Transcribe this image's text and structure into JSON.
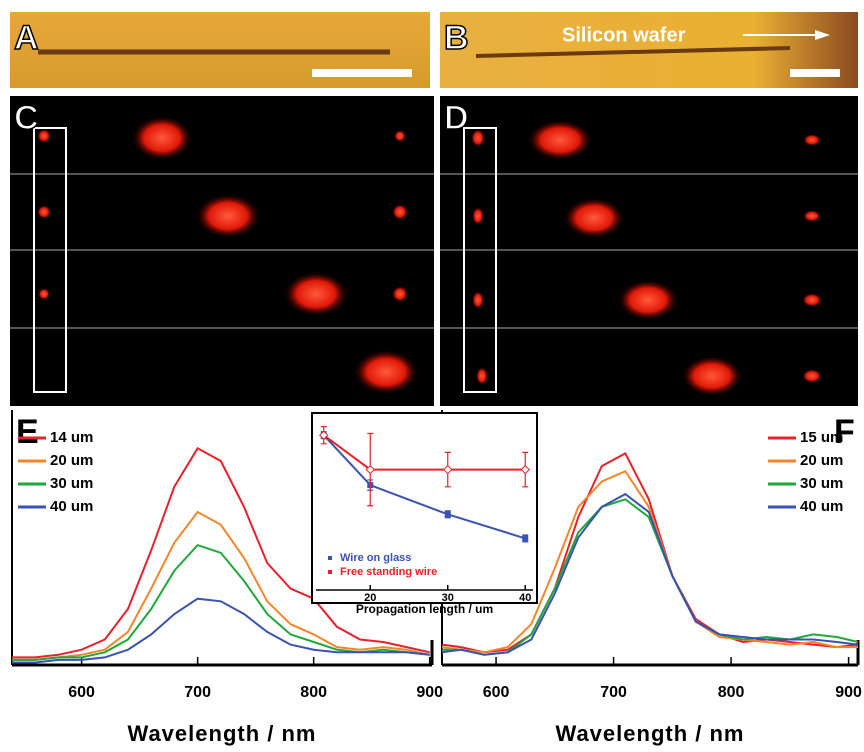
{
  "panels": {
    "labels": [
      "A",
      "B",
      "C",
      "D"
    ],
    "annotation": "Silicon wafer"
  },
  "chart_data": [
    {
      "type": "line",
      "panel": "E",
      "xlabel": "Wavelength / nm",
      "x": [
        540,
        560,
        580,
        600,
        620,
        640,
        660,
        680,
        700,
        720,
        740,
        760,
        780,
        800,
        820,
        840,
        860,
        880,
        900
      ],
      "series": [
        {
          "name": "14 um",
          "color": "#e8202a",
          "values": [
            3,
            3,
            4,
            6,
            10,
            22,
            45,
            70,
            85,
            80,
            62,
            40,
            30,
            26,
            15,
            10,
            9,
            7,
            5
          ]
        },
        {
          "name": "20 um",
          "color": "#f5852a",
          "values": [
            2,
            2,
            3,
            4,
            6,
            13,
            30,
            48,
            60,
            55,
            42,
            25,
            16,
            12,
            7,
            6,
            7,
            6,
            4
          ]
        },
        {
          "name": "30 um",
          "color": "#1fa83a",
          "values": [
            2,
            2,
            3,
            3,
            5,
            10,
            22,
            37,
            47,
            44,
            33,
            20,
            12,
            9,
            6,
            5,
            6,
            5,
            4
          ]
        },
        {
          "name": "40 um",
          "color": "#3a52b0",
          "values": [
            1,
            1,
            2,
            2,
            3,
            6,
            12,
            20,
            26,
            25,
            20,
            13,
            8,
            6,
            5,
            5,
            5,
            5,
            4
          ]
        }
      ],
      "xlim": [
        540,
        902
      ],
      "xticks": [
        600,
        700,
        800,
        900
      ],
      "ylim": [
        0,
        100
      ],
      "legend": "upper left"
    },
    {
      "type": "line",
      "panel": "F",
      "xlabel": "Wavelength / nm",
      "x": [
        554,
        570,
        590,
        610,
        630,
        650,
        670,
        690,
        710,
        730,
        750,
        770,
        790,
        810,
        830,
        850,
        870,
        890,
        908
      ],
      "series": [
        {
          "name": "15 um",
          "color": "#e8202a",
          "values": [
            8,
            7,
            5,
            6,
            12,
            30,
            58,
            78,
            83,
            65,
            35,
            18,
            12,
            9,
            10,
            9,
            8,
            7,
            8
          ]
        },
        {
          "name": "20 um",
          "color": "#f5852a",
          "values": [
            7,
            6,
            5,
            7,
            16,
            38,
            62,
            72,
            76,
            62,
            35,
            17,
            11,
            10,
            9,
            8,
            9,
            7,
            7
          ]
        },
        {
          "name": "30 um",
          "color": "#1fa83a",
          "values": [
            6,
            6,
            4,
            5,
            12,
            30,
            52,
            62,
            65,
            58,
            35,
            17,
            12,
            10,
            11,
            10,
            12,
            11,
            9
          ]
        },
        {
          "name": "40 um",
          "color": "#3a52b0",
          "values": [
            5,
            6,
            4,
            5,
            10,
            28,
            50,
            62,
            67,
            60,
            35,
            17,
            12,
            11,
            10,
            10,
            10,
            9,
            8
          ]
        }
      ],
      "xlim": [
        554,
        908
      ],
      "xticks": [
        600,
        700,
        800,
        900
      ],
      "ylim": [
        0,
        100
      ],
      "legend": "upper right"
    },
    {
      "type": "scatter",
      "xlabel": "Propagation length / um",
      "x": [
        14,
        20,
        30,
        40
      ],
      "series": [
        {
          "name": "Wire on glass",
          "color": "#3a52b0",
          "values": [
            0.9,
            0.61,
            0.44,
            0.3
          ],
          "errors": [
            0.02,
            0.03,
            0.02,
            0.02
          ]
        },
        {
          "name": "Free standing wire",
          "color": "#e8202a",
          "values": [
            0.9,
            0.7,
            0.7,
            0.7
          ],
          "errors": [
            0.05,
            0.21,
            0.1,
            0.1
          ]
        }
      ],
      "xlim": [
        13,
        41
      ],
      "xticks": [
        20,
        30,
        40
      ],
      "ylim": [
        0,
        1
      ],
      "legend": "lower left"
    }
  ]
}
